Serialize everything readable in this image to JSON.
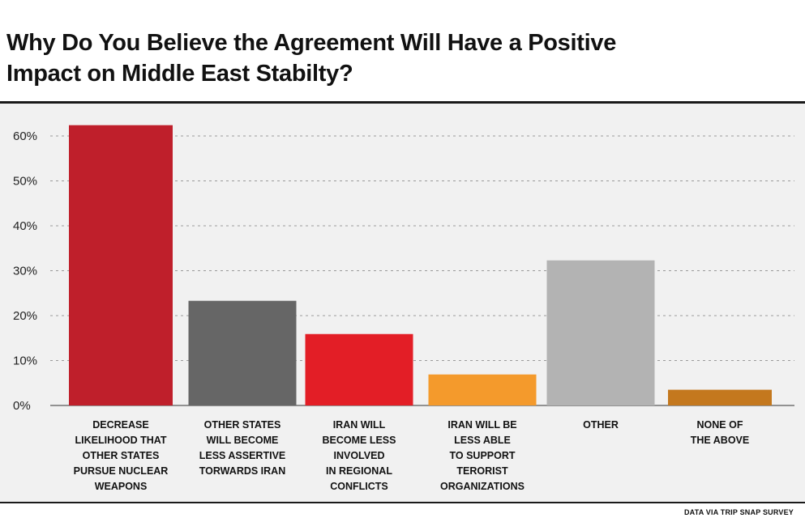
{
  "title_lines": [
    "Why Do You Believe the Agreement Will Have a Positive",
    "Impact on Middle East Stabilty?"
  ],
  "source": "DATA VIA TRIP SNAP SURVEY",
  "chart_data": {
    "type": "bar",
    "title": "Why Do You Believe the Agreement Will Have a Positive Impact on Middle East Stabilty?",
    "categories": [
      [
        "DECREASE",
        "LIKELIHOOD THAT",
        "OTHER STATES",
        "PURSUE NUCLEAR",
        "WEAPONS"
      ],
      [
        "OTHER STATES",
        "WILL BECOME",
        "LESS ASSERTIVE",
        "TORWARDS IRAN"
      ],
      [
        "IRAN WILL",
        "BECOME LESS",
        "INVOLVED",
        "IN REGIONAL",
        "CONFLICTS"
      ],
      [
        "IRAN WILL BE",
        "LESS ABLE",
        "TO SUPPORT",
        "TERORIST",
        "ORGANIZATIONS"
      ],
      [
        "OTHER"
      ],
      [
        "NONE OF",
        "THE ABOVE"
      ]
    ],
    "values": [
      62.4,
      23.3,
      15.9,
      6.9,
      32.3,
      3.5
    ],
    "colors": [
      "#bf1f2b",
      "#666666",
      "#e31e26",
      "#f49a2c",
      "#b3b3b3",
      "#c4781e"
    ],
    "ylim": [
      0,
      60
    ],
    "yticks": [
      0,
      10,
      20,
      30,
      40,
      50,
      60
    ],
    "ytick_labels": [
      "0%",
      "10%",
      "20%",
      "30%",
      "40%",
      "50%",
      "60%"
    ],
    "grid": true,
    "xlabel": "",
    "ylabel": ""
  }
}
